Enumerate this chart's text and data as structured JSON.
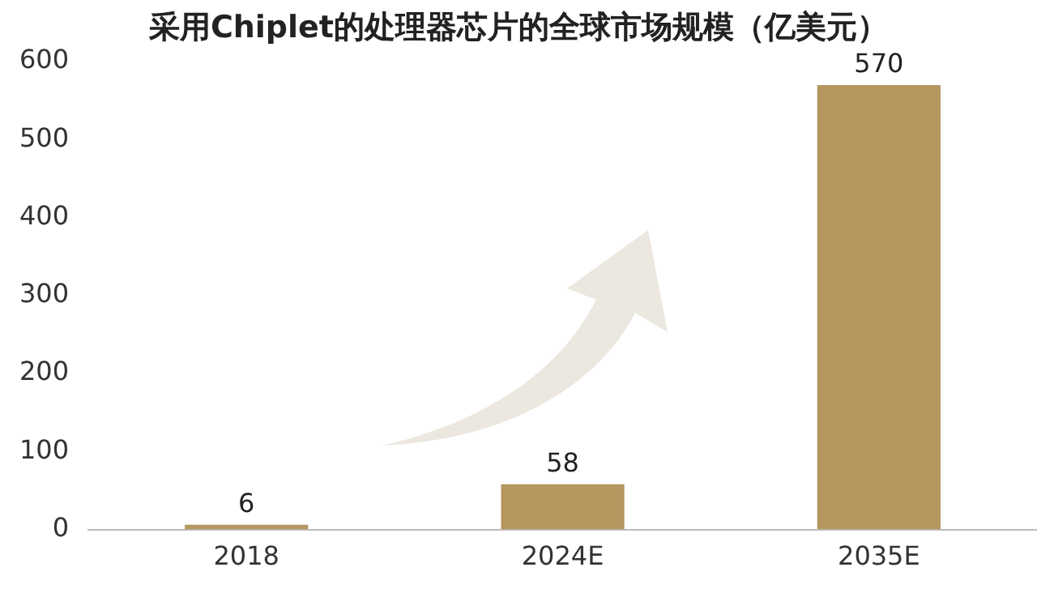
{
  "chart_data": {
    "type": "bar",
    "title": "采用Chiplet的处理器芯片的全球市场规模（亿美元）",
    "categories": [
      "2018",
      "2024E",
      "2035E"
    ],
    "values": [
      6,
      58,
      570
    ],
    "color": "#b5965f",
    "ylim": [
      0,
      600
    ],
    "yticks": [
      0,
      100,
      200,
      300,
      400,
      500,
      600
    ],
    "grid": false,
    "legend": false,
    "data_labels": true
  }
}
